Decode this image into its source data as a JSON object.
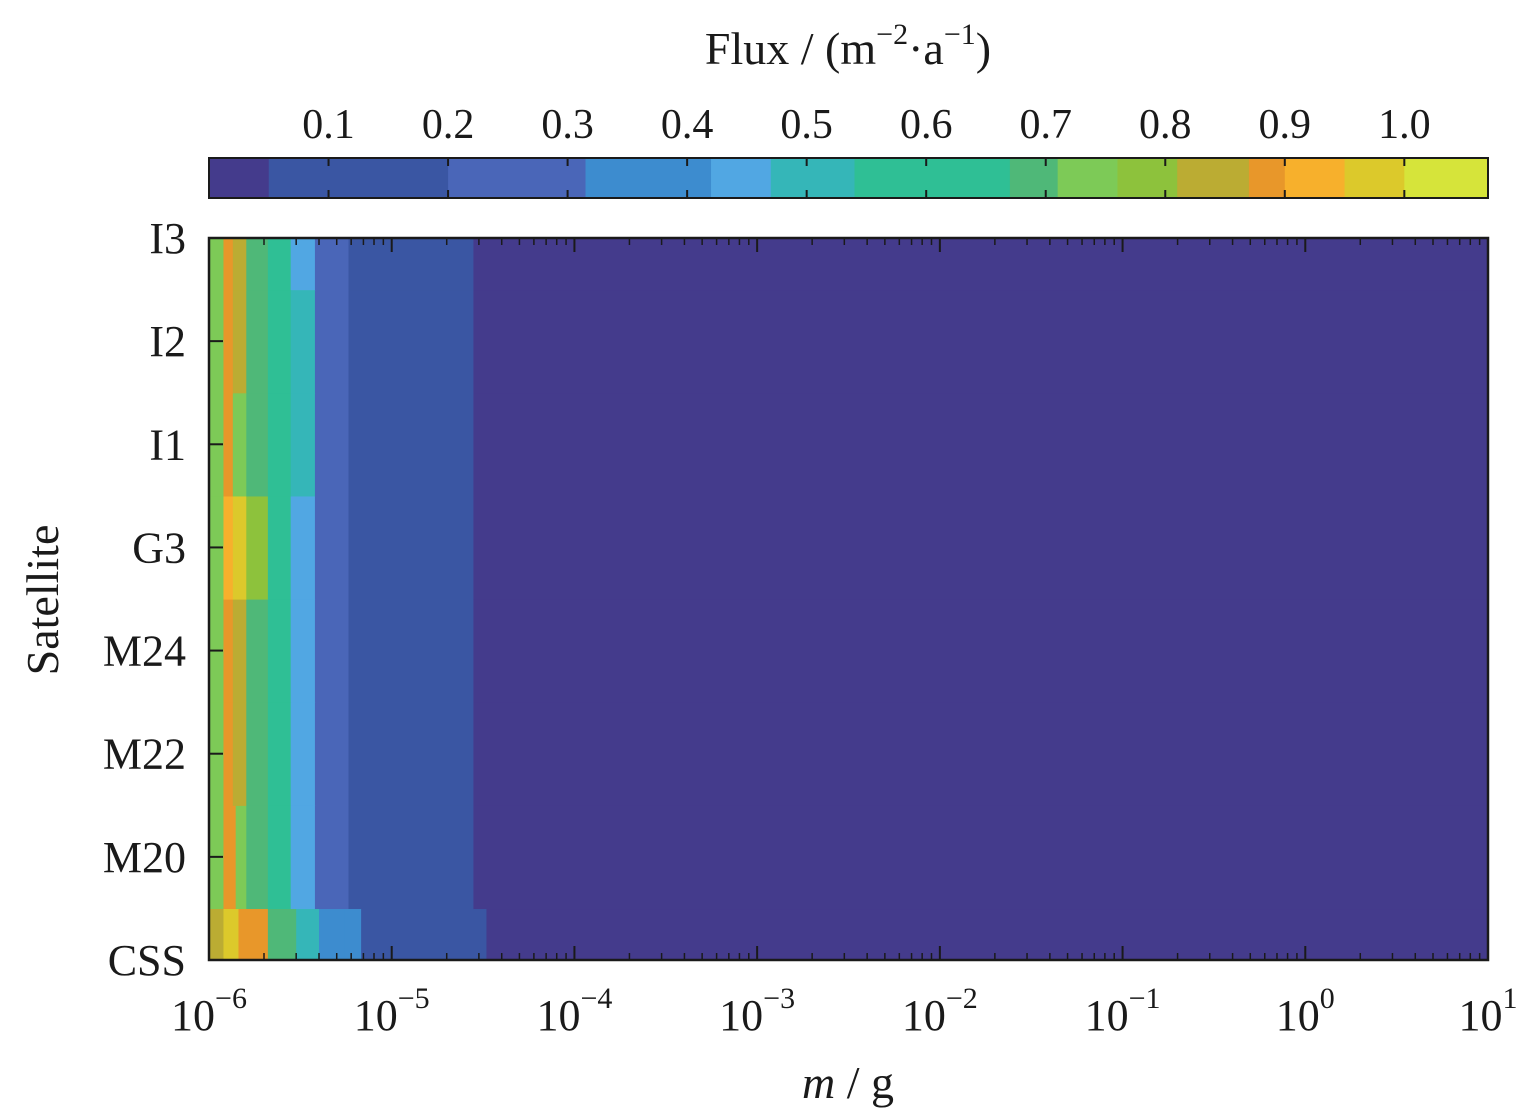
{
  "chart_data": {
    "type": "heatmap",
    "xlabel": {
      "italic": "m",
      "rest": " / g"
    },
    "ylabel": "Satellite",
    "xscale": "log",
    "xlim": [
      1e-06,
      10
    ],
    "x_ticks": [
      {
        "base": "10",
        "exp": "−6",
        "value": 1e-06
      },
      {
        "base": "10",
        "exp": "−5",
        "value": 1e-05
      },
      {
        "base": "10",
        "exp": "−4",
        "value": 0.0001
      },
      {
        "base": "10",
        "exp": "−3",
        "value": 0.001
      },
      {
        "base": "10",
        "exp": "−2",
        "value": 0.01
      },
      {
        "base": "10",
        "exp": "−1",
        "value": 0.1
      },
      {
        "base": "10",
        "exp": "0",
        "value": 1
      },
      {
        "base": "10",
        "exp": "1",
        "value": 10
      }
    ],
    "rows": [
      "CSS",
      "M20",
      "M22",
      "M24",
      "G3",
      "I1",
      "I2",
      "I3"
    ],
    "colorbar": {
      "label": {
        "prefix": "Flux / (m",
        "exp1": "−2",
        "mid": "·a",
        "exp2": "−1",
        "suffix": ")"
      },
      "min": 0.0,
      "max": 1.07,
      "placement": "top",
      "ticks": [
        "0.1",
        "0.2",
        "0.3",
        "0.4",
        "0.5",
        "0.6",
        "0.7",
        "0.8",
        "0.9",
        "1.0"
      ],
      "tick_values": [
        0.1,
        0.2,
        0.3,
        0.4,
        0.5,
        0.6,
        0.7,
        0.8,
        0.9,
        1.0
      ],
      "levels": [
        {
          "from": 0.0,
          "to": 0.05,
          "color": "#443b8c"
        },
        {
          "from": 0.05,
          "to": 0.2,
          "color": "#3a56a3"
        },
        {
          "from": 0.2,
          "to": 0.315,
          "color": "#4a66b8"
        },
        {
          "from": 0.315,
          "to": 0.42,
          "color": "#3d8ccf"
        },
        {
          "from": 0.42,
          "to": 0.47,
          "color": "#51a7e3"
        },
        {
          "from": 0.47,
          "to": 0.54,
          "color": "#35b6b8"
        },
        {
          "from": 0.54,
          "to": 0.67,
          "color": "#2fbf95"
        },
        {
          "from": 0.67,
          "to": 0.71,
          "color": "#4fb878"
        },
        {
          "from": 0.71,
          "to": 0.76,
          "color": "#7dca57"
        },
        {
          "from": 0.76,
          "to": 0.81,
          "color": "#8dc23c"
        },
        {
          "from": 0.81,
          "to": 0.87,
          "color": "#bbac33"
        },
        {
          "from": 0.87,
          "to": 0.9,
          "color": "#e8972a"
        },
        {
          "from": 0.9,
          "to": 0.95,
          "color": "#f7b02c"
        },
        {
          "from": 0.95,
          "to": 1.0,
          "color": "#dcc92b"
        },
        {
          "from": 1.0,
          "to": 1.07,
          "color": "#d6e43a"
        }
      ]
    },
    "cells": [
      {
        "row": "CSS",
        "segments": [
          {
            "x0": 1e-06,
            "x1": 1.2e-06,
            "v": 0.85
          },
          {
            "x0": 1.2e-06,
            "x1": 1.45e-06,
            "v": 0.98
          },
          {
            "x0": 1.45e-06,
            "x1": 2.1e-06,
            "v": 0.89
          },
          {
            "x0": 2.1e-06,
            "x1": 3e-06,
            "v": 0.68
          },
          {
            "x0": 3e-06,
            "x1": 4e-06,
            "v": 0.5
          },
          {
            "x0": 4e-06,
            "x1": 5.5e-06,
            "v": 0.4
          },
          {
            "x0": 5.5e-06,
            "x1": 6.8e-06,
            "v": 0.33
          },
          {
            "x0": 6.8e-06,
            "x1": 3.3e-05,
            "v": 0.15
          },
          {
            "x0": 3.3e-05,
            "x1": 10,
            "v": 0.02
          }
        ]
      },
      {
        "row": "M20",
        "segments": [
          {
            "x0": 1e-06,
            "x1": 1.2e-06,
            "v": 0.74
          },
          {
            "x0": 1.2e-06,
            "x1": 1.4e-06,
            "v": 0.88
          },
          {
            "x0": 1.4e-06,
            "x1": 1.6e-06,
            "v": 0.73
          },
          {
            "x0": 1.6e-06,
            "x1": 2.1e-06,
            "v": 0.69
          },
          {
            "x0": 2.1e-06,
            "x1": 2.8e-06,
            "v": 0.55
          },
          {
            "x0": 2.8e-06,
            "x1": 3.8e-06,
            "v": 0.45
          },
          {
            "x0": 3.8e-06,
            "x1": 5.8e-06,
            "v": 0.3
          },
          {
            "x0": 5.8e-06,
            "x1": 2.8e-05,
            "v": 0.15
          },
          {
            "x0": 2.8e-05,
            "x1": 10,
            "v": 0.02
          }
        ]
      },
      {
        "row": "M22",
        "segments": [
          {
            "x0": 1e-06,
            "x1": 1.2e-06,
            "v": 0.74
          },
          {
            "x0": 1.2e-06,
            "x1": 1.35e-06,
            "v": 0.88
          },
          {
            "x0": 1.35e-06,
            "x1": 1.6e-06,
            "v": 0.84
          },
          {
            "x0": 1.6e-06,
            "x1": 2.1e-06,
            "v": 0.69
          },
          {
            "x0": 2.1e-06,
            "x1": 2.8e-06,
            "v": 0.55
          },
          {
            "x0": 2.8e-06,
            "x1": 3.8e-06,
            "v": 0.45
          },
          {
            "x0": 3.8e-06,
            "x1": 5.8e-06,
            "v": 0.3
          },
          {
            "x0": 5.8e-06,
            "x1": 2.8e-05,
            "v": 0.15
          },
          {
            "x0": 2.8e-05,
            "x1": 10,
            "v": 0.02
          }
        ]
      },
      {
        "row": "M24",
        "segments": [
          {
            "x0": 1e-06,
            "x1": 1.2e-06,
            "v": 0.74
          },
          {
            "x0": 1.2e-06,
            "x1": 1.35e-06,
            "v": 0.88
          },
          {
            "x0": 1.35e-06,
            "x1": 1.6e-06,
            "v": 0.84
          },
          {
            "x0": 1.6e-06,
            "x1": 2.1e-06,
            "v": 0.69
          },
          {
            "x0": 2.1e-06,
            "x1": 2.8e-06,
            "v": 0.55
          },
          {
            "x0": 2.8e-06,
            "x1": 3.8e-06,
            "v": 0.45
          },
          {
            "x0": 3.8e-06,
            "x1": 5.8e-06,
            "v": 0.3
          },
          {
            "x0": 5.8e-06,
            "x1": 2.8e-05,
            "v": 0.15
          },
          {
            "x0": 2.8e-05,
            "x1": 10,
            "v": 0.02
          }
        ]
      },
      {
        "row": "G3",
        "segments": [
          {
            "x0": 1e-06,
            "x1": 1.2e-06,
            "v": 0.74
          },
          {
            "x0": 1.2e-06,
            "x1": 1.35e-06,
            "v": 0.9
          },
          {
            "x0": 1.35e-06,
            "x1": 1.6e-06,
            "v": 0.98
          },
          {
            "x0": 1.6e-06,
            "x1": 2.1e-06,
            "v": 0.79
          },
          {
            "x0": 2.1e-06,
            "x1": 2.8e-06,
            "v": 0.55
          },
          {
            "x0": 2.8e-06,
            "x1": 3.8e-06,
            "v": 0.45
          },
          {
            "x0": 3.8e-06,
            "x1": 5.8e-06,
            "v": 0.3
          },
          {
            "x0": 5.8e-06,
            "x1": 2.8e-05,
            "v": 0.15
          },
          {
            "x0": 2.8e-05,
            "x1": 10,
            "v": 0.02
          }
        ]
      },
      {
        "row": "I1",
        "segments": [
          {
            "x0": 1e-06,
            "x1": 1.2e-06,
            "v": 0.74
          },
          {
            "x0": 1.2e-06,
            "x1": 1.35e-06,
            "v": 0.88
          },
          {
            "x0": 1.35e-06,
            "x1": 1.6e-06,
            "v": 0.73
          },
          {
            "x0": 1.6e-06,
            "x1": 2.1e-06,
            "v": 0.69
          },
          {
            "x0": 2.1e-06,
            "x1": 2.8e-06,
            "v": 0.55
          },
          {
            "x0": 2.8e-06,
            "x1": 3.8e-06,
            "v": 0.5
          },
          {
            "x0": 3.8e-06,
            "x1": 5.8e-06,
            "v": 0.3
          },
          {
            "x0": 5.8e-06,
            "x1": 2.8e-05,
            "v": 0.15
          },
          {
            "x0": 2.8e-05,
            "x1": 10,
            "v": 0.02
          }
        ]
      },
      {
        "row": "I2",
        "segments": [
          {
            "x0": 1e-06,
            "x1": 1.2e-06,
            "v": 0.74
          },
          {
            "x0": 1.2e-06,
            "x1": 1.35e-06,
            "v": 0.88
          },
          {
            "x0": 1.35e-06,
            "x1": 1.6e-06,
            "v": 0.82
          },
          {
            "x0": 1.6e-06,
            "x1": 2.1e-06,
            "v": 0.69
          },
          {
            "x0": 2.1e-06,
            "x1": 2.8e-06,
            "v": 0.55
          },
          {
            "x0": 2.8e-06,
            "x1": 3.8e-06,
            "v": 0.5
          },
          {
            "x0": 3.8e-06,
            "x1": 5.8e-06,
            "v": 0.3
          },
          {
            "x0": 5.8e-06,
            "x1": 2.8e-05,
            "v": 0.15
          },
          {
            "x0": 2.8e-05,
            "x1": 10,
            "v": 0.02
          }
        ]
      },
      {
        "row": "I3",
        "segments": [
          {
            "x0": 1e-06,
            "x1": 1.2e-06,
            "v": 0.74
          },
          {
            "x0": 1.2e-06,
            "x1": 1.35e-06,
            "v": 0.88
          },
          {
            "x0": 1.35e-06,
            "x1": 1.6e-06,
            "v": 0.82
          },
          {
            "x0": 1.6e-06,
            "x1": 2.1e-06,
            "v": 0.69
          },
          {
            "x0": 2.1e-06,
            "x1": 2.8e-06,
            "v": 0.55
          },
          {
            "x0": 2.8e-06,
            "x1": 3.8e-06,
            "v": 0.45
          },
          {
            "x0": 3.8e-06,
            "x1": 5.8e-06,
            "v": 0.3
          },
          {
            "x0": 5.8e-06,
            "x1": 2.8e-05,
            "v": 0.15
          },
          {
            "x0": 2.8e-05,
            "x1": 10,
            "v": 0.02
          }
        ]
      }
    ]
  }
}
